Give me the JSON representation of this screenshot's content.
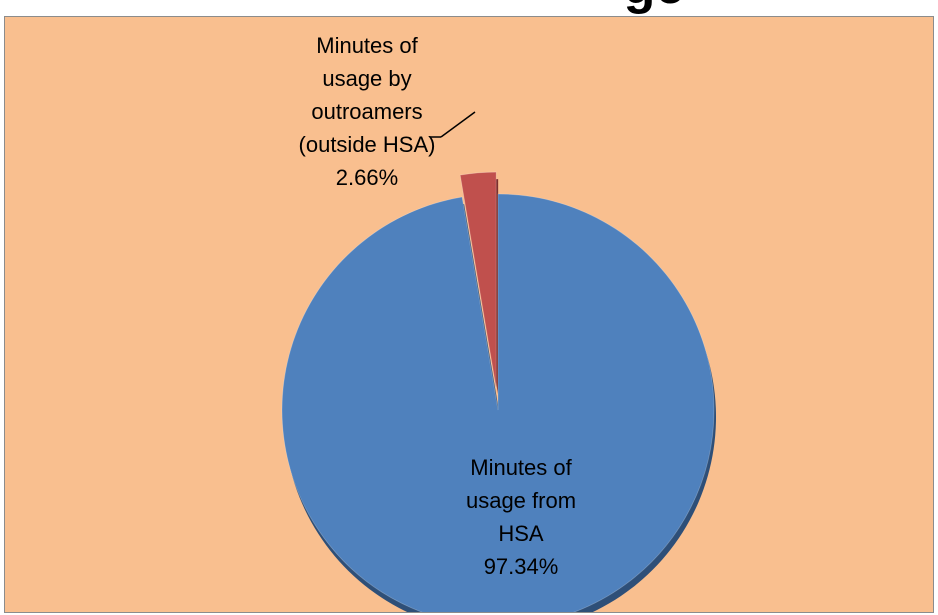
{
  "page_title_fragment": "ge",
  "colors": {
    "background": "#f9bf8f",
    "slice_hsa": "#4f81bd",
    "slice_hsa_shadow": "#2e4f78",
    "slice_outroamers": "#c0504d",
    "slice_outroamers_shadow": "#7d2f2d",
    "leader_line": "#000000"
  },
  "chart_data": {
    "type": "pie",
    "title": "",
    "categories": [
      "Minutes of usage from HSA",
      "Minutes of usage by outroamers (outside HSA)"
    ],
    "values": [
      97.34,
      2.66
    ],
    "labels": [
      {
        "lines": [
          "Minutes of",
          "usage from",
          "HSA"
        ],
        "percent": "97.34%"
      },
      {
        "lines": [
          "Minutes of",
          "usage by",
          "outroamers",
          "(outside HSA)"
        ],
        "percent": "2.66%"
      }
    ],
    "exploded_slice": 1,
    "start_angle_deg": 0,
    "direction": "clockwise",
    "legend": "none"
  }
}
